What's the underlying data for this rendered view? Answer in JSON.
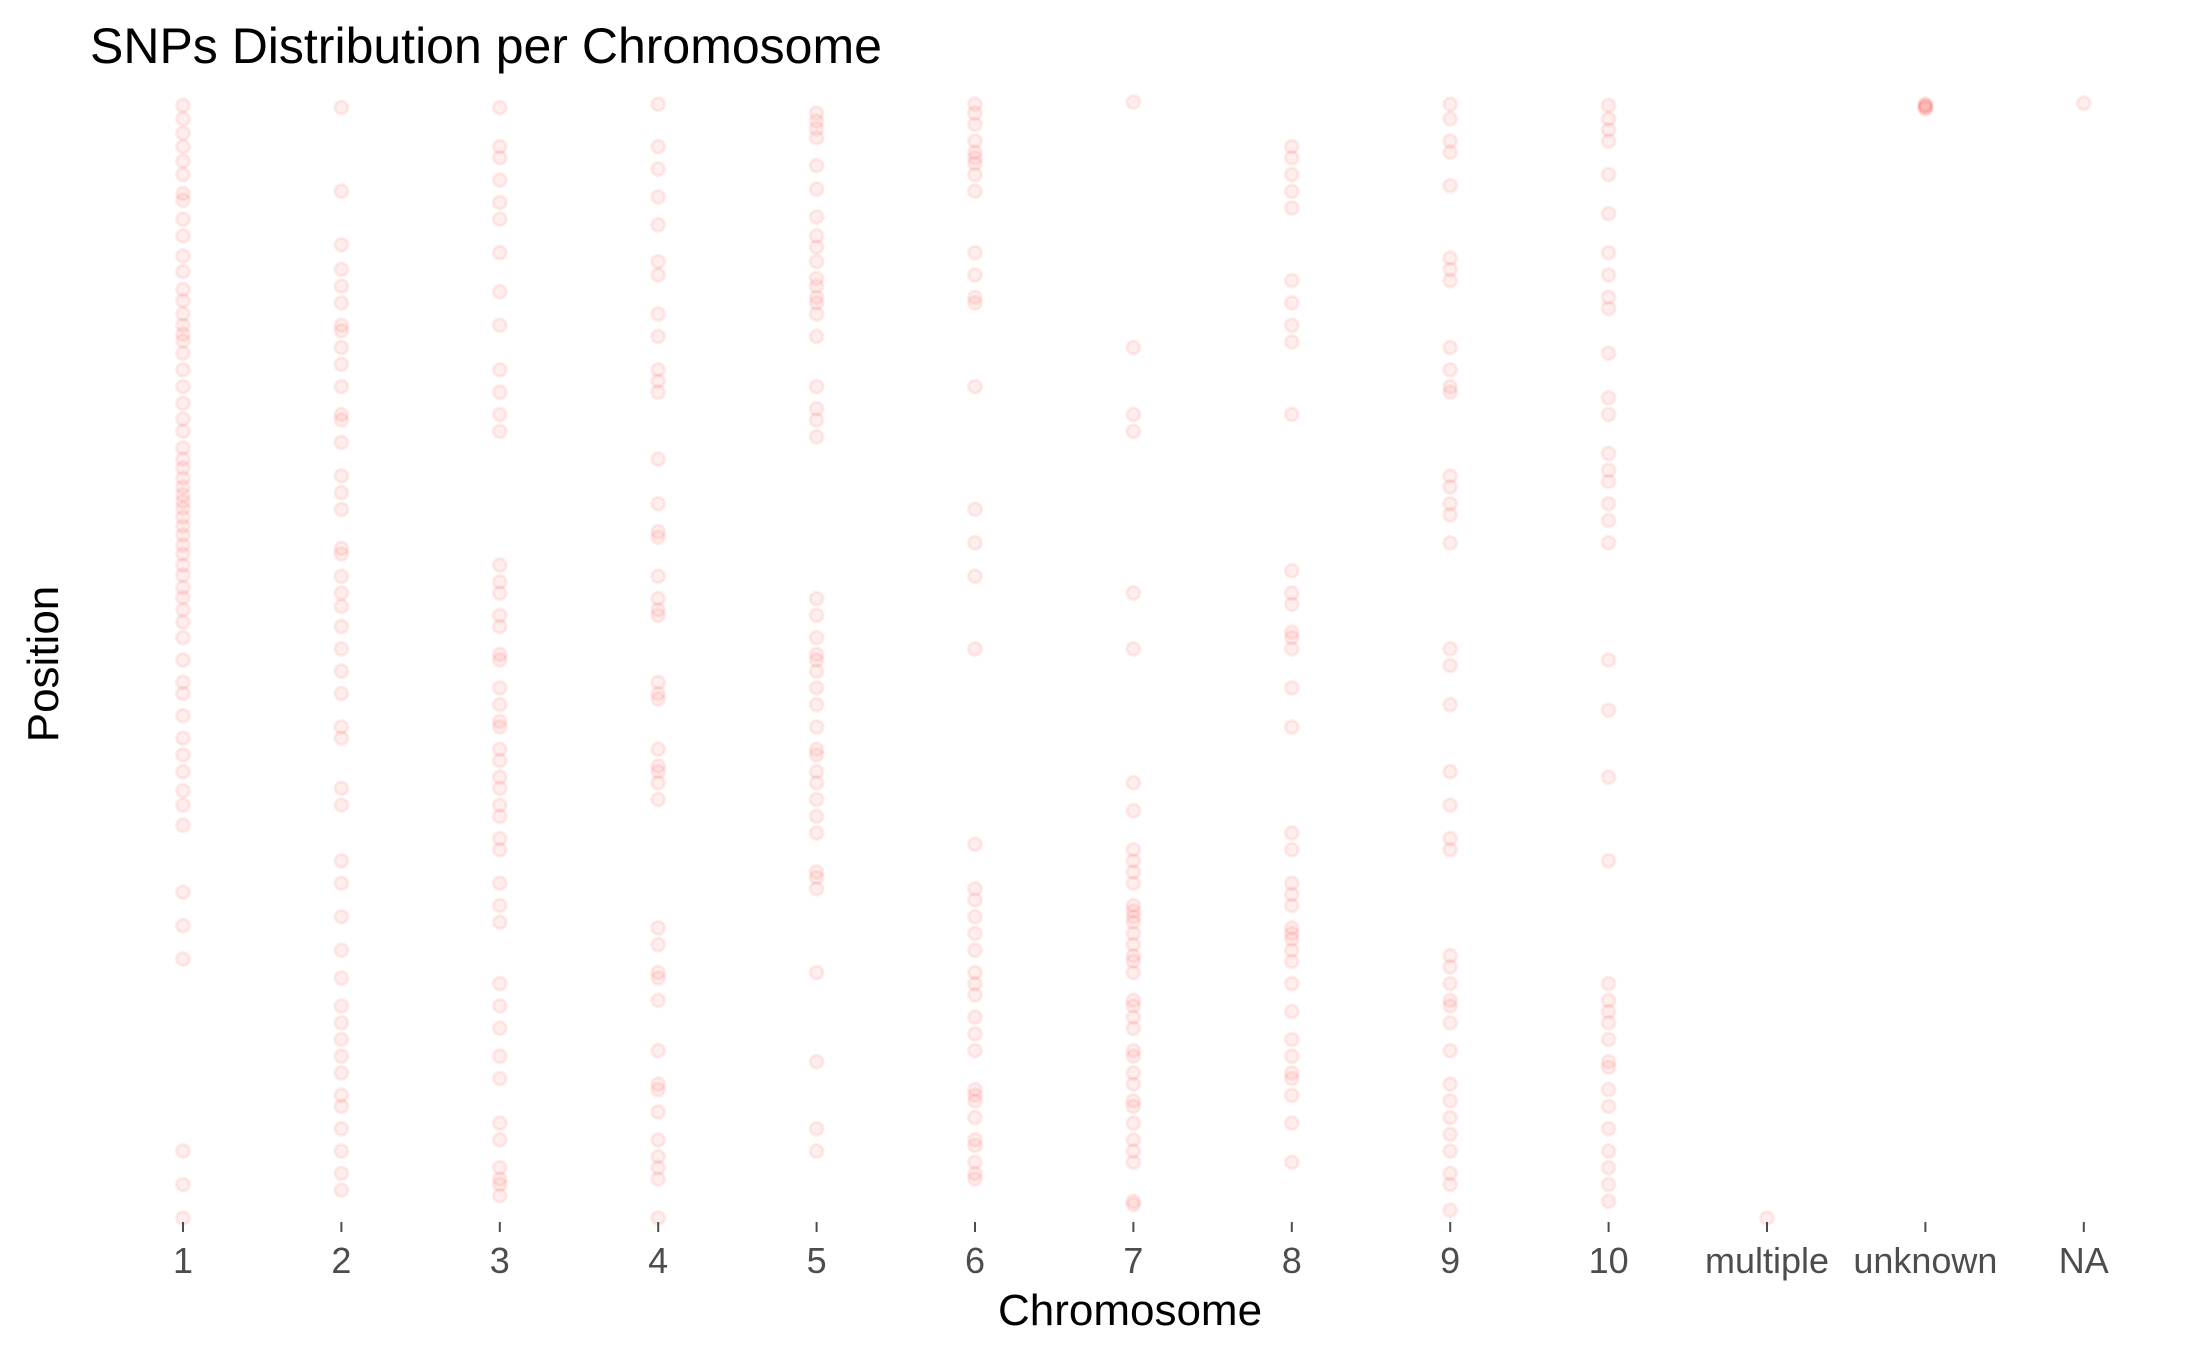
{
  "chart_data": {
    "type": "scatter",
    "title": "SNPs Distribution per Chromosome",
    "xlabel": "Chromosome",
    "ylabel": "Position",
    "categories": [
      "1",
      "2",
      "3",
      "4",
      "5",
      "6",
      "7",
      "8",
      "9",
      "10",
      "multiple",
      "unknown",
      "NA"
    ],
    "y_tick_labels": "none",
    "ylim": [
      0,
      1
    ],
    "grid": false,
    "legend": "none",
    "point_color": "#F8766D",
    "point_alpha": 0.12,
    "points": {
      "1": [
        0.997,
        0.985,
        0.972,
        0.96,
        0.947,
        0.935,
        0.918,
        0.912,
        0.895,
        0.88,
        0.862,
        0.848,
        0.832,
        0.822,
        0.81,
        0.8,
        0.792,
        0.786,
        0.775,
        0.76,
        0.745,
        0.73,
        0.716,
        0.705,
        0.69,
        0.68,
        0.672,
        0.663,
        0.655,
        0.648,
        0.642,
        0.636,
        0.628,
        0.62,
        0.612,
        0.603,
        0.595,
        0.585,
        0.576,
        0.565,
        0.556,
        0.545,
        0.534,
        0.52,
        0.5,
        0.48,
        0.47,
        0.45,
        0.43,
        0.415,
        0.4,
        0.383,
        0.37,
        0.352,
        0.292,
        0.262,
        0.232,
        0.06,
        0.03,
        0.0
      ],
      "2": [
        0.995,
        0.92,
        0.872,
        0.85,
        0.835,
        0.82,
        0.8,
        0.795,
        0.78,
        0.765,
        0.745,
        0.72,
        0.715,
        0.695,
        0.665,
        0.65,
        0.635,
        0.6,
        0.595,
        0.575,
        0.56,
        0.548,
        0.53,
        0.51,
        0.49,
        0.47,
        0.44,
        0.43,
        0.385,
        0.37,
        0.32,
        0.3,
        0.27,
        0.24,
        0.215,
        0.19,
        0.175,
        0.16,
        0.145,
        0.13,
        0.11,
        0.1,
        0.08,
        0.06,
        0.04,
        0.025
      ],
      "3": [
        0.995,
        0.96,
        0.95,
        0.93,
        0.91,
        0.895,
        0.865,
        0.83,
        0.8,
        0.76,
        0.74,
        0.72,
        0.705,
        0.585,
        0.57,
        0.56,
        0.54,
        0.53,
        0.505,
        0.5,
        0.475,
        0.46,
        0.445,
        0.44,
        0.42,
        0.41,
        0.395,
        0.385,
        0.37,
        0.36,
        0.34,
        0.33,
        0.3,
        0.28,
        0.265,
        0.21,
        0.19,
        0.17,
        0.145,
        0.125,
        0.085,
        0.07,
        0.045,
        0.035,
        0.03,
        0.02
      ],
      "4": [
        0.998,
        0.96,
        0.94,
        0.915,
        0.89,
        0.857,
        0.845,
        0.81,
        0.79,
        0.76,
        0.75,
        0.74,
        0.68,
        0.64,
        0.615,
        0.61,
        0.575,
        0.555,
        0.545,
        0.54,
        0.48,
        0.47,
        0.465,
        0.42,
        0.405,
        0.4,
        0.39,
        0.375,
        0.26,
        0.245,
        0.22,
        0.215,
        0.195,
        0.15,
        0.12,
        0.115,
        0.095,
        0.07,
        0.055,
        0.045,
        0.035,
        0.0
      ],
      "5": [
        0.99,
        0.983,
        0.976,
        0.968,
        0.943,
        0.922,
        0.897,
        0.88,
        0.87,
        0.857,
        0.842,
        0.835,
        0.825,
        0.82,
        0.81,
        0.79,
        0.745,
        0.725,
        0.715,
        0.7,
        0.555,
        0.54,
        0.52,
        0.505,
        0.5,
        0.49,
        0.475,
        0.46,
        0.44,
        0.42,
        0.415,
        0.4,
        0.39,
        0.375,
        0.36,
        0.345,
        0.31,
        0.305,
        0.295,
        0.22,
        0.14,
        0.08,
        0.06
      ],
      "6": [
        0.998,
        0.99,
        0.98,
        0.965,
        0.955,
        0.95,
        0.945,
        0.935,
        0.92,
        0.865,
        0.845,
        0.825,
        0.82,
        0.745,
        0.635,
        0.605,
        0.575,
        0.51,
        0.335,
        0.295,
        0.285,
        0.27,
        0.255,
        0.24,
        0.22,
        0.21,
        0.2,
        0.18,
        0.165,
        0.15,
        0.115,
        0.11,
        0.105,
        0.09,
        0.07,
        0.065,
        0.05,
        0.04,
        0.035
      ],
      "7": [
        1.0,
        0.78,
        0.72,
        0.705,
        0.56,
        0.51,
        0.39,
        0.365,
        0.33,
        0.32,
        0.31,
        0.3,
        0.28,
        0.275,
        0.27,
        0.265,
        0.255,
        0.245,
        0.235,
        0.23,
        0.22,
        0.195,
        0.19,
        0.18,
        0.17,
        0.15,
        0.145,
        0.13,
        0.12,
        0.105,
        0.1,
        0.085,
        0.07,
        0.06,
        0.05,
        0.015,
        0.012
      ],
      "8": [
        0.96,
        0.95,
        0.935,
        0.92,
        0.905,
        0.84,
        0.82,
        0.8,
        0.785,
        0.72,
        0.58,
        0.56,
        0.55,
        0.525,
        0.52,
        0.51,
        0.475,
        0.44,
        0.345,
        0.33,
        0.3,
        0.29,
        0.28,
        0.26,
        0.255,
        0.25,
        0.24,
        0.23,
        0.21,
        0.185,
        0.16,
        0.145,
        0.13,
        0.125,
        0.11,
        0.085,
        0.05
      ],
      "9": [
        0.998,
        0.985,
        0.965,
        0.955,
        0.925,
        0.86,
        0.85,
        0.84,
        0.78,
        0.76,
        0.745,
        0.74,
        0.665,
        0.655,
        0.64,
        0.63,
        0.605,
        0.51,
        0.495,
        0.46,
        0.4,
        0.37,
        0.34,
        0.33,
        0.235,
        0.225,
        0.21,
        0.195,
        0.19,
        0.175,
        0.15,
        0.12,
        0.105,
        0.09,
        0.075,
        0.06,
        0.04,
        0.03,
        0.007
      ],
      "10": [
        0.997,
        0.985,
        0.975,
        0.965,
        0.935,
        0.9,
        0.865,
        0.845,
        0.825,
        0.815,
        0.775,
        0.735,
        0.72,
        0.685,
        0.67,
        0.66,
        0.64,
        0.625,
        0.605,
        0.5,
        0.455,
        0.395,
        0.32,
        0.21,
        0.195,
        0.185,
        0.175,
        0.16,
        0.14,
        0.135,
        0.115,
        0.1,
        0.08,
        0.06,
        0.045,
        0.03,
        0.015
      ],
      "multiple": [
        0.0
      ],
      "unknown": [
        0.998,
        0.997,
        0.996,
        0.995,
        0.994
      ],
      "NA": [
        0.999
      ]
    }
  }
}
